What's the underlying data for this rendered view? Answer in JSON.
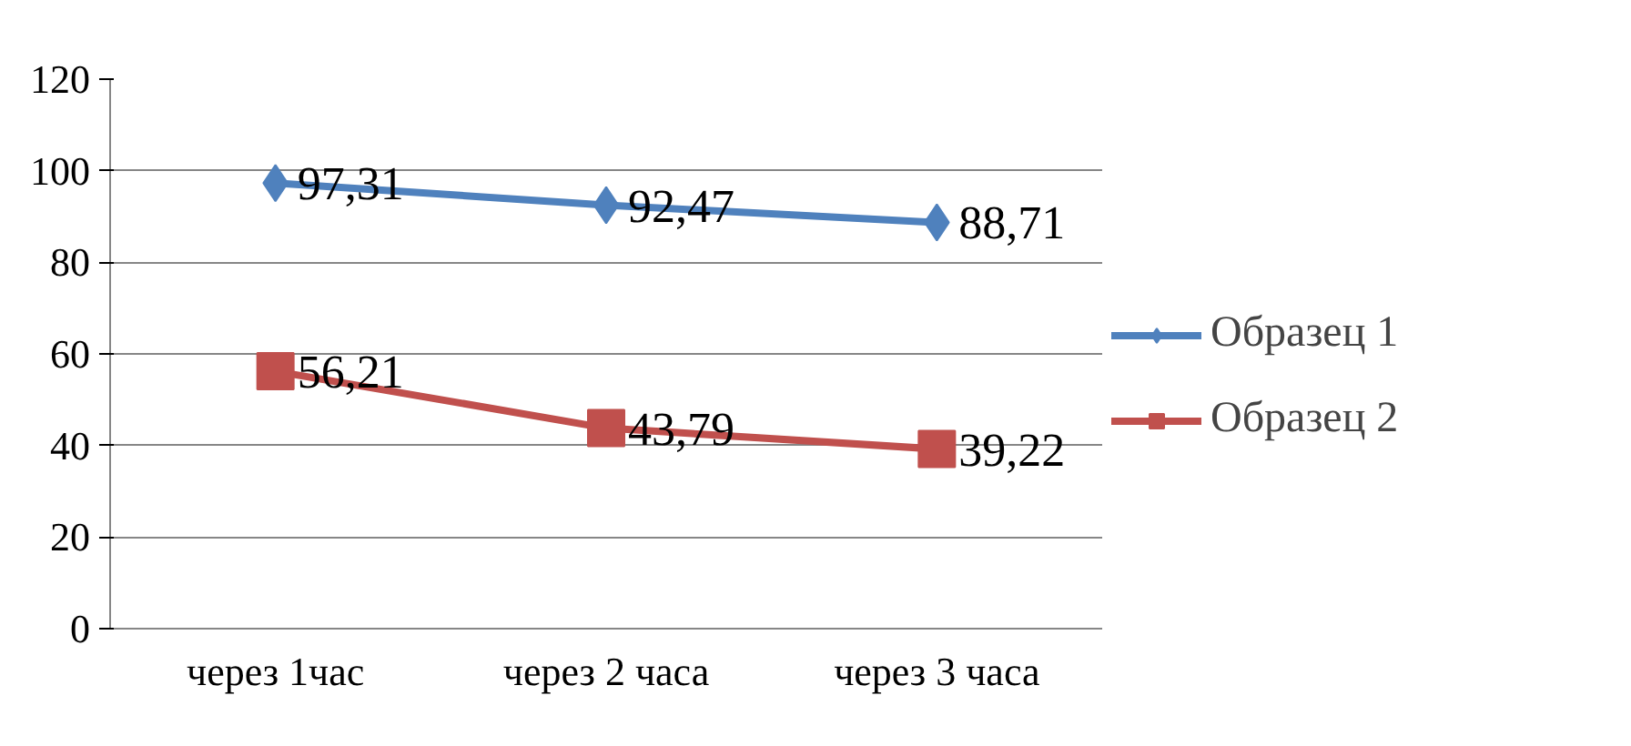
{
  "chart_data": {
    "type": "line",
    "categories": [
      "через 1час",
      "через 2 часа",
      "через 3 часа"
    ],
    "series": [
      {
        "name": "Образец 1",
        "color": "#4f81bd",
        "marker": "diamond",
        "values": [
          97.31,
          92.47,
          88.71
        ],
        "value_labels": [
          "97,31",
          "92,47",
          "88,71"
        ]
      },
      {
        "name": "Образец 2",
        "color": "#c0504d",
        "marker": "square",
        "values": [
          56.21,
          43.79,
          39.22
        ],
        "value_labels": [
          "56,21",
          "43,79",
          "39,22"
        ]
      }
    ],
    "ylim": [
      0,
      120
    ],
    "yticks": [
      0,
      20,
      40,
      60,
      80,
      100,
      120
    ],
    "grid": "y",
    "legend": "right"
  }
}
